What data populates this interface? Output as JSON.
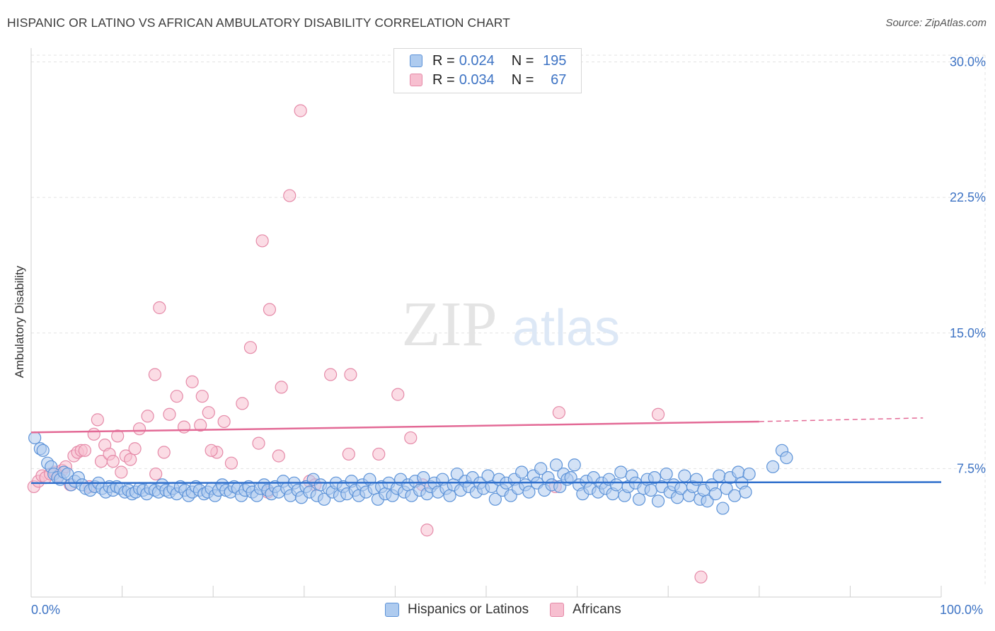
{
  "title": "HISPANIC OR LATINO VS AFRICAN AMBULATORY DISABILITY CORRELATION CHART",
  "source": "Source: ZipAtlas.com",
  "watermark": {
    "zip": "ZIP",
    "atlas": "atlas"
  },
  "legend_top": [
    {
      "r_label": "R =",
      "r_value": "0.024",
      "n_label": "N =",
      "n_value": "195"
    },
    {
      "r_label": "R =",
      "r_value": "0.034",
      "n_label": "N =",
      "n_value": "67"
    }
  ],
  "legend_bottom": [
    "Hispanics or Latinos",
    "Africans"
  ],
  "colors": {
    "blue_fill": "#aecbef",
    "blue_stroke": "#5d93d8",
    "blue_line": "#2f6fcc",
    "pink_fill": "#f7bfd0",
    "pink_stroke": "#e58aa8",
    "pink_line": "#e36a96",
    "tick_label": "#3d73c4",
    "grid": "#e3e3e3"
  },
  "chart_data": {
    "type": "scatter",
    "title": "HISPANIC OR LATINO VS AFRICAN AMBULATORY DISABILITY CORRELATION CHART",
    "xlabel": "",
    "ylabel": "Ambulatory Disability",
    "xlim": [
      0,
      100
    ],
    "ylim": [
      0,
      31
    ],
    "x_tick_labels": [
      "0.0%",
      "100.0%"
    ],
    "y_ticks": [
      7.5,
      15.0,
      22.5,
      30.0
    ],
    "y_tick_labels": [
      "7.5%",
      "15.0%",
      "22.5%",
      "30.0%"
    ],
    "grid": true,
    "legend": "bottom-center",
    "series": [
      {
        "name": "Hispanics or Latinos",
        "color": "#aecbef",
        "trend": {
          "x": [
            0,
            100
          ],
          "y": [
            6.7,
            6.75
          ],
          "dashed_from": null
        },
        "points": [
          [
            0.4,
            9.2
          ],
          [
            1.0,
            8.6
          ],
          [
            1.3,
            8.5
          ],
          [
            1.8,
            7.8
          ],
          [
            2.2,
            7.6
          ],
          [
            2.5,
            7.2
          ],
          [
            2.9,
            7.0
          ],
          [
            3.2,
            6.9
          ],
          [
            3.6,
            7.3
          ],
          [
            4.0,
            7.2
          ],
          [
            4.4,
            6.6
          ],
          [
            4.8,
            6.8
          ],
          [
            5.2,
            7.0
          ],
          [
            5.6,
            6.6
          ],
          [
            6.0,
            6.4
          ],
          [
            6.5,
            6.3
          ],
          [
            7.0,
            6.5
          ],
          [
            7.4,
            6.7
          ],
          [
            7.8,
            6.4
          ],
          [
            8.2,
            6.2
          ],
          [
            8.6,
            6.5
          ],
          [
            9.0,
            6.3
          ],
          [
            9.4,
            6.5
          ],
          [
            9.8,
            6.4
          ],
          [
            10.3,
            6.2
          ],
          [
            10.7,
            6.3
          ],
          [
            11.1,
            6.1
          ],
          [
            11.5,
            6.2
          ],
          [
            11.9,
            6.4
          ],
          [
            12.3,
            6.3
          ],
          [
            12.7,
            6.1
          ],
          [
            13.1,
            6.4
          ],
          [
            13.6,
            6.3
          ],
          [
            14.0,
            6.2
          ],
          [
            14.4,
            6.6
          ],
          [
            14.8,
            6.3
          ],
          [
            15.2,
            6.2
          ],
          [
            15.6,
            6.4
          ],
          [
            16.0,
            6.1
          ],
          [
            16.4,
            6.5
          ],
          [
            16.9,
            6.3
          ],
          [
            17.3,
            6.0
          ],
          [
            17.7,
            6.2
          ],
          [
            18.1,
            6.5
          ],
          [
            18.5,
            6.3
          ],
          [
            19.0,
            6.1
          ],
          [
            19.4,
            6.2
          ],
          [
            19.8,
            6.4
          ],
          [
            20.2,
            6.0
          ],
          [
            20.6,
            6.3
          ],
          [
            21.0,
            6.6
          ],
          [
            21.4,
            6.3
          ],
          [
            21.9,
            6.2
          ],
          [
            22.3,
            6.5
          ],
          [
            22.7,
            6.4
          ],
          [
            23.1,
            6.0
          ],
          [
            23.5,
            6.3
          ],
          [
            23.9,
            6.5
          ],
          [
            24.3,
            6.2
          ],
          [
            24.8,
            6.0
          ],
          [
            25.2,
            6.4
          ],
          [
            25.6,
            6.6
          ],
          [
            26.0,
            6.3
          ],
          [
            26.4,
            6.1
          ],
          [
            26.8,
            6.5
          ],
          [
            27.2,
            6.2
          ],
          [
            27.7,
            6.8
          ],
          [
            28.1,
            6.4
          ],
          [
            28.5,
            6.0
          ],
          [
            28.9,
            6.7
          ],
          [
            29.3,
            6.3
          ],
          [
            29.7,
            5.9
          ],
          [
            30.2,
            6.5
          ],
          [
            30.6,
            6.2
          ],
          [
            31.0,
            6.9
          ],
          [
            31.4,
            6.0
          ],
          [
            31.8,
            6.6
          ],
          [
            32.2,
            5.8
          ],
          [
            32.7,
            6.4
          ],
          [
            33.1,
            6.2
          ],
          [
            33.5,
            6.7
          ],
          [
            33.9,
            6.0
          ],
          [
            34.3,
            6.5
          ],
          [
            34.7,
            6.1
          ],
          [
            35.2,
            6.8
          ],
          [
            35.6,
            6.3
          ],
          [
            36.0,
            6.0
          ],
          [
            36.4,
            6.6
          ],
          [
            36.8,
            6.2
          ],
          [
            37.2,
            6.9
          ],
          [
            37.7,
            6.4
          ],
          [
            38.1,
            5.8
          ],
          [
            38.5,
            6.5
          ],
          [
            38.9,
            6.1
          ],
          [
            39.3,
            6.7
          ],
          [
            39.7,
            6.0
          ],
          [
            40.2,
            6.4
          ],
          [
            40.6,
            6.9
          ],
          [
            41.0,
            6.2
          ],
          [
            41.4,
            6.6
          ],
          [
            41.8,
            6.0
          ],
          [
            42.2,
            6.8
          ],
          [
            42.7,
            6.3
          ],
          [
            43.1,
            7.0
          ],
          [
            43.5,
            6.1
          ],
          [
            43.9,
            6.5
          ],
          [
            44.3,
            6.7
          ],
          [
            44.7,
            6.2
          ],
          [
            45.2,
            6.9
          ],
          [
            45.6,
            6.4
          ],
          [
            46.0,
            6.0
          ],
          [
            46.4,
            6.6
          ],
          [
            46.8,
            7.2
          ],
          [
            47.2,
            6.3
          ],
          [
            47.7,
            6.8
          ],
          [
            48.1,
            6.5
          ],
          [
            48.5,
            7.0
          ],
          [
            48.9,
            6.2
          ],
          [
            49.3,
            6.7
          ],
          [
            49.7,
            6.4
          ],
          [
            50.2,
            7.1
          ],
          [
            50.6,
            6.5
          ],
          [
            51.0,
            5.8
          ],
          [
            51.4,
            6.9
          ],
          [
            51.8,
            6.3
          ],
          [
            52.2,
            6.7
          ],
          [
            52.7,
            6.0
          ],
          [
            53.1,
            6.9
          ],
          [
            53.5,
            6.4
          ],
          [
            53.9,
            7.3
          ],
          [
            54.3,
            6.6
          ],
          [
            54.7,
            6.2
          ],
          [
            55.2,
            7.1
          ],
          [
            55.6,
            6.7
          ],
          [
            56.0,
            7.5
          ],
          [
            56.4,
            6.3
          ],
          [
            56.8,
            7.0
          ],
          [
            57.2,
            6.6
          ],
          [
            57.7,
            7.7
          ],
          [
            58.1,
            6.5
          ],
          [
            58.5,
            7.2
          ],
          [
            58.9,
            6.9
          ],
          [
            59.3,
            7.0
          ],
          [
            59.7,
            7.7
          ],
          [
            60.2,
            6.6
          ],
          [
            60.6,
            6.1
          ],
          [
            61.0,
            6.8
          ],
          [
            61.4,
            6.4
          ],
          [
            61.8,
            7.0
          ],
          [
            62.3,
            6.2
          ],
          [
            62.7,
            6.7
          ],
          [
            63.1,
            6.4
          ],
          [
            63.5,
            6.9
          ],
          [
            63.9,
            6.1
          ],
          [
            64.3,
            6.6
          ],
          [
            64.8,
            7.3
          ],
          [
            65.2,
            6.0
          ],
          [
            65.6,
            6.5
          ],
          [
            66.0,
            7.1
          ],
          [
            66.4,
            6.7
          ],
          [
            66.8,
            5.8
          ],
          [
            67.3,
            6.4
          ],
          [
            67.7,
            6.9
          ],
          [
            68.1,
            6.3
          ],
          [
            68.5,
            7.0
          ],
          [
            68.9,
            5.7
          ],
          [
            69.3,
            6.5
          ],
          [
            69.8,
            7.2
          ],
          [
            70.2,
            6.2
          ],
          [
            70.6,
            6.6
          ],
          [
            71.0,
            5.9
          ],
          [
            71.4,
            6.4
          ],
          [
            71.8,
            7.1
          ],
          [
            72.3,
            6.0
          ],
          [
            72.7,
            6.5
          ],
          [
            73.1,
            6.9
          ],
          [
            73.5,
            5.8
          ],
          [
            73.9,
            6.3
          ],
          [
            74.3,
            5.7
          ],
          [
            74.8,
            6.6
          ],
          [
            75.2,
            6.1
          ],
          [
            75.6,
            7.1
          ],
          [
            76.0,
            5.3
          ],
          [
            76.4,
            6.4
          ],
          [
            76.8,
            7.0
          ],
          [
            77.3,
            6.0
          ],
          [
            77.7,
            7.3
          ],
          [
            78.1,
            6.7
          ],
          [
            78.5,
            6.2
          ],
          [
            78.9,
            7.2
          ],
          [
            81.5,
            7.6
          ],
          [
            82.5,
            8.5
          ],
          [
            83.0,
            8.1
          ]
        ]
      },
      {
        "name": "Africans",
        "color": "#f7bfd0",
        "trend": {
          "x": [
            0,
            80,
            98
          ],
          "y": [
            9.5,
            10.1,
            10.3
          ],
          "dashed_from": 80
        },
        "points": [
          [
            0.3,
            6.5
          ],
          [
            0.8,
            6.8
          ],
          [
            1.2,
            7.1
          ],
          [
            1.6,
            7.0
          ],
          [
            2.1,
            7.2
          ],
          [
            2.6,
            7.3
          ],
          [
            3.0,
            7.1
          ],
          [
            3.4,
            7.4
          ],
          [
            3.8,
            7.6
          ],
          [
            4.3,
            6.6
          ],
          [
            4.7,
            8.2
          ],
          [
            5.1,
            8.4
          ],
          [
            5.5,
            8.5
          ],
          [
            5.9,
            8.5
          ],
          [
            6.4,
            6.5
          ],
          [
            6.9,
            9.4
          ],
          [
            7.3,
            10.2
          ],
          [
            7.7,
            7.9
          ],
          [
            8.1,
            8.8
          ],
          [
            8.6,
            8.3
          ],
          [
            9.0,
            7.9
          ],
          [
            9.5,
            9.3
          ],
          [
            9.9,
            7.3
          ],
          [
            10.4,
            8.2
          ],
          [
            10.9,
            8.0
          ],
          [
            11.4,
            8.6
          ],
          [
            11.9,
            9.7
          ],
          [
            12.8,
            10.4
          ],
          [
            13.7,
            7.2
          ],
          [
            14.6,
            8.4
          ],
          [
            15.2,
            10.5
          ],
          [
            16.0,
            11.5
          ],
          [
            16.8,
            9.8
          ],
          [
            17.7,
            12.3
          ],
          [
            18.6,
            9.9
          ],
          [
            19.5,
            10.6
          ],
          [
            20.4,
            8.4
          ],
          [
            21.2,
            10.1
          ],
          [
            22.0,
            7.8
          ],
          [
            23.2,
            11.1
          ],
          [
            24.1,
            14.2
          ],
          [
            25.0,
            8.9
          ],
          [
            26.0,
            6.2
          ],
          [
            27.5,
            12.0
          ],
          [
            29.6,
            27.3
          ],
          [
            30.6,
            6.8
          ],
          [
            31.2,
            6.6
          ],
          [
            32.9,
            12.7
          ],
          [
            34.9,
            8.3
          ],
          [
            38.2,
            8.3
          ],
          [
            40.3,
            11.6
          ],
          [
            41.7,
            9.2
          ],
          [
            43.0,
            6.6
          ],
          [
            43.5,
            4.1
          ],
          [
            57.6,
            6.5
          ],
          [
            58.0,
            10.6
          ],
          [
            68.9,
            10.5
          ],
          [
            73.6,
            1.5
          ],
          [
            14.1,
            16.4
          ],
          [
            13.6,
            12.7
          ],
          [
            18.8,
            11.5
          ],
          [
            19.8,
            8.5
          ],
          [
            28.4,
            22.6
          ],
          [
            25.4,
            20.1
          ],
          [
            26.2,
            16.3
          ],
          [
            35.1,
            12.7
          ],
          [
            27.2,
            8.2
          ]
        ]
      }
    ]
  }
}
